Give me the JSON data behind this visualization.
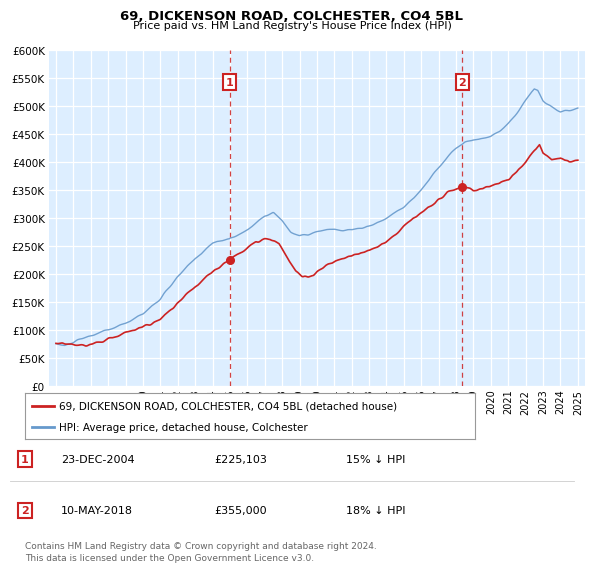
{
  "title": "69, DICKENSON ROAD, COLCHESTER, CO4 5BL",
  "subtitle": "Price paid vs. HM Land Registry's House Price Index (HPI)",
  "bg_color": "#ddeeff",
  "hpi_color": "#6699cc",
  "price_color": "#cc2222",
  "vline_color": "#cc2222",
  "ann_color": "#cc2222",
  "ylim": [
    0,
    600000
  ],
  "yticks": [
    0,
    50000,
    100000,
    150000,
    200000,
    250000,
    300000,
    350000,
    400000,
    450000,
    500000,
    550000,
    600000
  ],
  "transactions": [
    {
      "date_num": 2004.98,
      "price": 225103,
      "label": "1"
    },
    {
      "date_num": 2018.36,
      "price": 355000,
      "label": "2"
    }
  ],
  "legend_entries": [
    {
      "label": "69, DICKENSON ROAD, COLCHESTER, CO4 5BL (detached house)",
      "color": "#cc2222"
    },
    {
      "label": "HPI: Average price, detached house, Colchester",
      "color": "#6699cc"
    }
  ],
  "table_rows": [
    {
      "num": "1",
      "date": "23-DEC-2004",
      "price": "£225,103",
      "note": "15% ↓ HPI"
    },
    {
      "num": "2",
      "date": "10-MAY-2018",
      "price": "£355,000",
      "note": "18% ↓ HPI"
    }
  ],
  "footer": "Contains HM Land Registry data © Crown copyright and database right 2024.\nThis data is licensed under the Open Government Licence v3.0."
}
